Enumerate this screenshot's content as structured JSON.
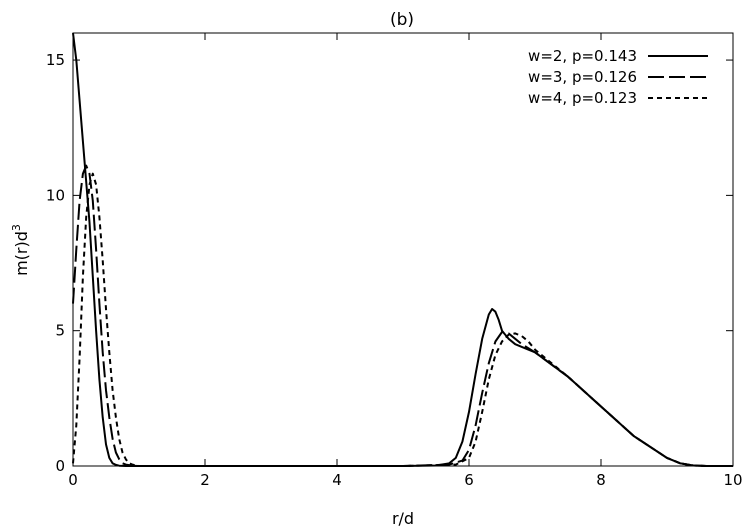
{
  "chart_data": {
    "type": "line",
    "title": "(b)",
    "xlabel": "r/d",
    "ylabel_base": "m(r)d",
    "ylabel_sup": "3",
    "xlim": [
      0,
      10
    ],
    "ylim": [
      0,
      16
    ],
    "xticks": [
      "0",
      "2",
      "4",
      "6",
      "8",
      "10"
    ],
    "yticks": [
      "0",
      "5",
      "10",
      "15"
    ],
    "grid": false,
    "legend_position": "top-right",
    "series": [
      {
        "name": "w=2, p=0.143",
        "dash": "solid",
        "x": [
          0,
          0.05,
          0.1,
          0.15,
          0.2,
          0.25,
          0.3,
          0.35,
          0.4,
          0.45,
          0.5,
          0.55,
          0.6,
          0.65,
          0.7,
          0.8,
          1.0,
          5.0,
          5.5,
          5.7,
          5.8,
          5.9,
          6.0,
          6.1,
          6.2,
          6.3,
          6.35,
          6.4,
          6.45,
          6.5,
          6.6,
          6.7,
          6.8,
          7.0,
          7.5,
          8.0,
          8.5,
          9.0,
          9.2,
          9.4,
          9.6,
          10.0
        ],
        "y": [
          16.0,
          15.0,
          13.5,
          12.0,
          10.5,
          9.0,
          7.0,
          5.0,
          3.2,
          1.8,
          0.8,
          0.3,
          0.1,
          0.04,
          0.01,
          0,
          0,
          0,
          0.02,
          0.1,
          0.3,
          0.9,
          2.0,
          3.4,
          4.7,
          5.6,
          5.8,
          5.7,
          5.4,
          5.0,
          4.7,
          4.5,
          4.4,
          4.2,
          3.3,
          2.2,
          1.1,
          0.3,
          0.1,
          0.02,
          0,
          0
        ]
      },
      {
        "name": "w=3, p=0.126",
        "dash": "long",
        "x": [
          0,
          0.05,
          0.1,
          0.15,
          0.2,
          0.25,
          0.3,
          0.35,
          0.4,
          0.45,
          0.5,
          0.55,
          0.6,
          0.65,
          0.7,
          0.75,
          0.8,
          0.9,
          1.0,
          5.0,
          5.7,
          5.9,
          6.0,
          6.1,
          6.2,
          6.3,
          6.4,
          6.5,
          6.6,
          6.7,
          6.8,
          7.0,
          7.5,
          8.0,
          8.5,
          9.0,
          9.2,
          9.4,
          9.6,
          10.0
        ],
        "y": [
          6.0,
          8.0,
          9.8,
          10.8,
          11.1,
          10.8,
          9.8,
          8.0,
          6.0,
          4.2,
          2.8,
          1.8,
          1.0,
          0.5,
          0.25,
          0.1,
          0.05,
          0.01,
          0,
          0,
          0.05,
          0.2,
          0.6,
          1.5,
          2.7,
          3.8,
          4.6,
          4.95,
          4.9,
          4.7,
          4.5,
          4.2,
          3.3,
          2.2,
          1.1,
          0.3,
          0.1,
          0.02,
          0,
          0
        ]
      },
      {
        "name": "w=4, p=0.123",
        "dash": "short",
        "x": [
          0,
          0.05,
          0.1,
          0.15,
          0.2,
          0.25,
          0.3,
          0.35,
          0.4,
          0.45,
          0.5,
          0.55,
          0.6,
          0.65,
          0.7,
          0.75,
          0.8,
          0.85,
          0.9,
          1.0,
          5.0,
          5.8,
          6.0,
          6.1,
          6.2,
          6.3,
          6.4,
          6.5,
          6.6,
          6.7,
          6.8,
          6.9,
          7.0,
          7.5,
          8.0,
          8.5,
          9.0,
          9.2,
          9.4,
          9.6,
          10.0
        ],
        "y": [
          0.1,
          1.5,
          4.0,
          7.0,
          9.2,
          10.4,
          10.8,
          10.4,
          9.2,
          7.6,
          5.8,
          4.2,
          2.8,
          1.8,
          1.0,
          0.5,
          0.25,
          0.1,
          0.05,
          0,
          0,
          0.05,
          0.3,
          0.9,
          2.0,
          3.2,
          4.1,
          4.6,
          4.85,
          4.9,
          4.8,
          4.6,
          4.3,
          3.3,
          2.2,
          1.1,
          0.3,
          0.1,
          0.02,
          0,
          0
        ]
      }
    ]
  }
}
